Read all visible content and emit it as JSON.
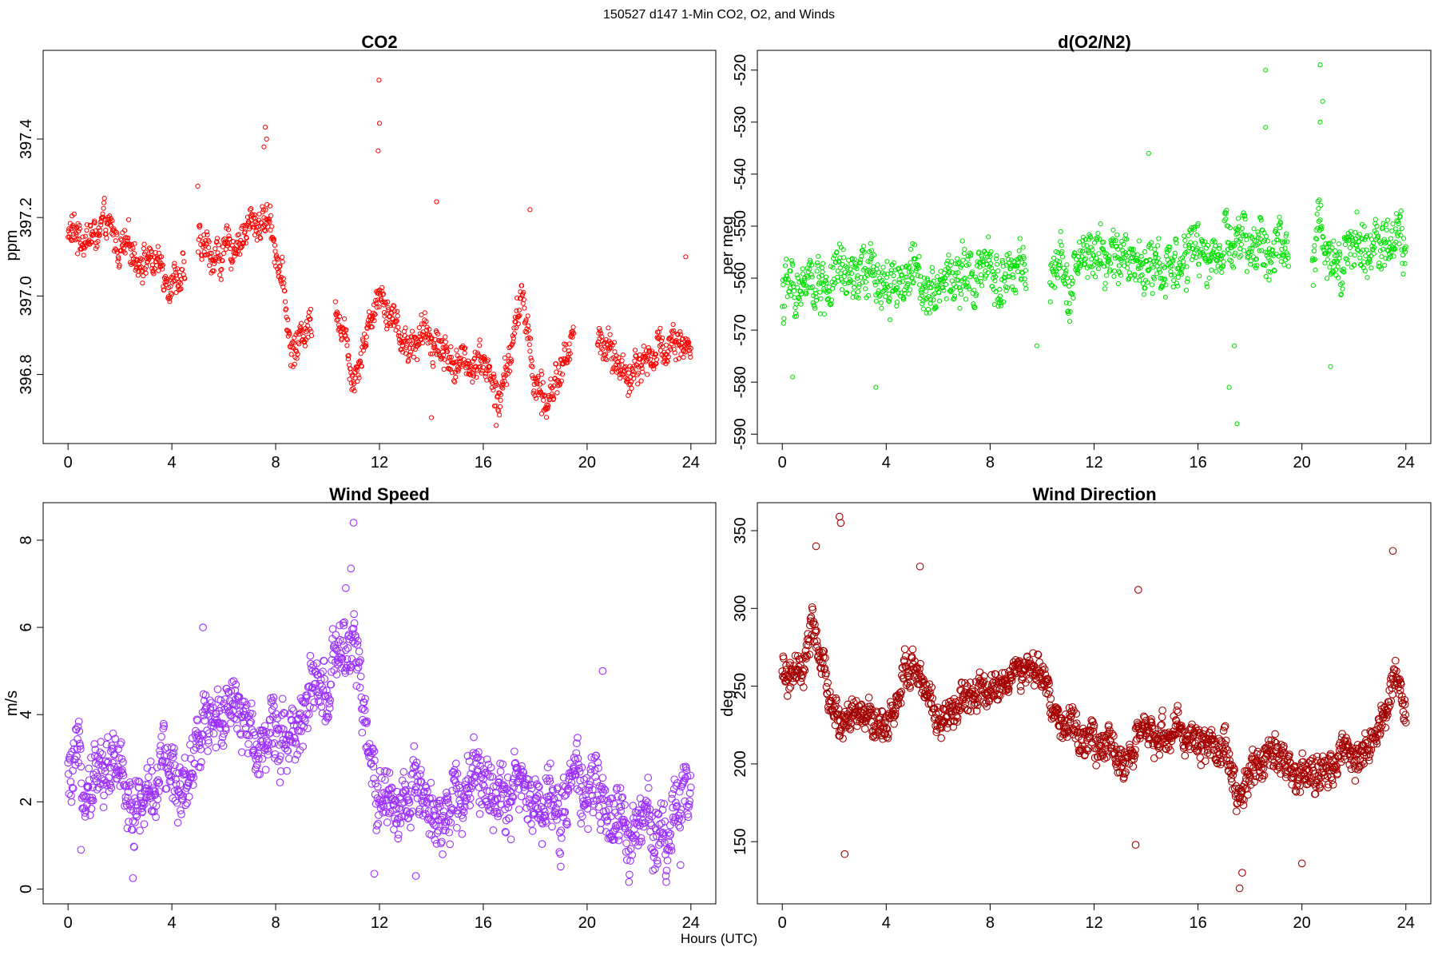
{
  "figure": {
    "suptitle": "150527   d147   1-Min CO2, O2, and Winds",
    "xlabel": "Hours (UTC)"
  },
  "chart_data": [
    {
      "type": "scatter",
      "title": "CO2",
      "xlabel": "",
      "ylabel": "ppm",
      "xlim": [
        -0.96,
        24.96
      ],
      "ylim": [
        396.624,
        397.626
      ],
      "xticks": [
        0,
        4,
        8,
        12,
        16,
        20,
        24
      ],
      "yticks": [
        396.8,
        397.0,
        397.2,
        397.4
      ],
      "ytick_labels": [
        "396.8",
        "397.0",
        "397.2",
        "397.4"
      ],
      "color": "#ff0000",
      "marker_size": "small",
      "gaps": [
        [
          4.5,
          5.0
        ],
        [
          9.4,
          10.3
        ],
        [
          19.5,
          20.4
        ]
      ],
      "trend": [
        [
          0,
          397.16
        ],
        [
          1,
          397.15
        ],
        [
          1.5,
          397.17
        ],
        [
          2,
          397.12
        ],
        [
          3,
          397.1
        ],
        [
          4,
          397.05
        ],
        [
          4.5,
          397.05
        ],
        [
          5,
          397.12
        ],
        [
          6,
          397.1
        ],
        [
          7,
          397.18
        ],
        [
          7.8,
          397.2
        ],
        [
          8.3,
          397.02
        ],
        [
          8.6,
          396.85
        ],
        [
          9.4,
          396.95
        ],
        [
          10.3,
          397.0
        ],
        [
          11,
          396.8
        ],
        [
          12,
          397.02
        ],
        [
          13,
          396.88
        ],
        [
          14,
          396.9
        ],
        [
          15,
          396.82
        ],
        [
          16,
          396.85
        ],
        [
          16.6,
          396.72
        ],
        [
          17.5,
          397.0
        ],
        [
          18,
          396.78
        ],
        [
          18.4,
          396.72
        ],
        [
          19.5,
          396.9
        ],
        [
          20.4,
          396.9
        ],
        [
          21.5,
          396.8
        ],
        [
          22.5,
          396.85
        ],
        [
          23.5,
          396.9
        ],
        [
          24,
          396.85
        ]
      ],
      "noise": 0.055,
      "extremes": [
        [
          11.98,
          397.55
        ],
        [
          12.0,
          397.44
        ],
        [
          11.95,
          397.37
        ],
        [
          7.6,
          397.43
        ],
        [
          7.65,
          397.4
        ],
        [
          7.55,
          397.38
        ],
        [
          14.2,
          397.24
        ],
        [
          5,
          397.28
        ],
        [
          17.8,
          397.22
        ],
        [
          16.5,
          396.67
        ],
        [
          14.0,
          396.69
        ],
        [
          18.25,
          396.7
        ],
        [
          23.8,
          397.1
        ]
      ]
    },
    {
      "type": "scatter",
      "title": "d(O2/N2)",
      "xlabel": "",
      "ylabel": "per meg",
      "xlim": [
        -0.96,
        24.96
      ],
      "ylim": [
        -591.8,
        -516.2
      ],
      "xticks": [
        0,
        4,
        8,
        12,
        16,
        20,
        24
      ],
      "yticks": [
        -590,
        -580,
        -570,
        -560,
        -550,
        -540,
        -530,
        -520
      ],
      "ytick_labels": [
        "-590",
        "-580",
        "-570",
        "-560",
        "-550",
        "-540",
        "-530",
        "-520"
      ],
      "color": "#00e000",
      "marker_size": "small",
      "gaps": [
        [
          9.4,
          10.3
        ],
        [
          19.5,
          20.4
        ]
      ],
      "trend": [
        [
          0,
          -563
        ],
        [
          2,
          -561
        ],
        [
          4,
          -560
        ],
        [
          6,
          -560
        ],
        [
          8,
          -560
        ],
        [
          9.4,
          -559
        ],
        [
          10.3,
          -562
        ],
        [
          12,
          -556
        ],
        [
          14,
          -557
        ],
        [
          16,
          -556
        ],
        [
          18,
          -554
        ],
        [
          19.5,
          -555
        ],
        [
          20.4,
          -553
        ],
        [
          22,
          -555
        ],
        [
          24,
          -552
        ]
      ],
      "noise": 6.5,
      "extremes": [
        [
          20.7,
          -519
        ],
        [
          18.6,
          -520
        ],
        [
          20.8,
          -526
        ],
        [
          18.6,
          -531
        ],
        [
          20.7,
          -530
        ],
        [
          17.5,
          -588
        ],
        [
          17.2,
          -581
        ],
        [
          14.1,
          -536
        ],
        [
          0.4,
          -579
        ],
        [
          3.6,
          -581
        ],
        [
          17.4,
          -573
        ],
        [
          21.1,
          -577
        ],
        [
          9.8,
          -573
        ]
      ]
    },
    {
      "type": "scatter",
      "title": "Wind Speed",
      "xlabel": "",
      "ylabel": "m/s",
      "xlim": [
        -0.96,
        24.96
      ],
      "ylim": [
        -0.34,
        8.86
      ],
      "xticks": [
        0,
        4,
        8,
        12,
        16,
        20,
        24
      ],
      "yticks": [
        0,
        2,
        4,
        6,
        8
      ],
      "ytick_labels": [
        "0",
        "2",
        "4",
        "6",
        "8"
      ],
      "color": "#9b30ff",
      "marker_size": "large",
      "gaps": [],
      "trend": [
        [
          0,
          2.4
        ],
        [
          1,
          2.8
        ],
        [
          2,
          2.7
        ],
        [
          2.7,
          1.8
        ],
        [
          3.5,
          2.6
        ],
        [
          4.5,
          2.6
        ],
        [
          5,
          3.4
        ],
        [
          5.5,
          4.2
        ],
        [
          7,
          3.6
        ],
        [
          8,
          3.5
        ],
        [
          9,
          4.0
        ],
        [
          10,
          4.6
        ],
        [
          11,
          5.6
        ],
        [
          11.6,
          3.0
        ],
        [
          12,
          2.2
        ],
        [
          13,
          2.0
        ],
        [
          14,
          1.8
        ],
        [
          15,
          2.0
        ],
        [
          16,
          2.6
        ],
        [
          17,
          2.4
        ],
        [
          18,
          2.0
        ],
        [
          19,
          1.9
        ],
        [
          20,
          2.4
        ],
        [
          21,
          1.5
        ],
        [
          22,
          1.3
        ],
        [
          23,
          1.4
        ],
        [
          24,
          2.6
        ]
      ],
      "noise": 0.95,
      "extremes": [
        [
          11.0,
          8.4
        ],
        [
          10.9,
          7.35
        ],
        [
          10.7,
          6.9
        ],
        [
          5.2,
          6.0
        ],
        [
          20.6,
          5.0
        ],
        [
          0.5,
          0.9
        ],
        [
          2.5,
          0.25
        ],
        [
          11.8,
          0.35
        ],
        [
          13.4,
          0.3
        ],
        [
          23.6,
          0.55
        ]
      ]
    },
    {
      "type": "scatter",
      "title": "Wind Direction",
      "xlabel": "",
      "ylabel": "deg",
      "xlim": [
        -0.96,
        24.96
      ],
      "ylim": [
        110,
        368
      ],
      "xticks": [
        0,
        4,
        8,
        12,
        16,
        20,
        24
      ],
      "yticks": [
        150,
        200,
        250,
        300,
        350
      ],
      "ytick_labels": [
        "150",
        "200",
        "250",
        "300",
        "350"
      ],
      "color": "#a50000",
      "marker_size": "large",
      "gaps": [],
      "trend": [
        [
          0,
          255
        ],
        [
          0.8,
          255
        ],
        [
          1.2,
          290
        ],
        [
          1.6,
          255
        ],
        [
          2.2,
          225
        ],
        [
          3,
          230
        ],
        [
          4,
          225
        ],
        [
          5,
          265
        ],
        [
          6,
          225
        ],
        [
          7,
          240
        ],
        [
          8,
          245
        ],
        [
          9,
          260
        ],
        [
          10,
          255
        ],
        [
          11,
          220
        ],
        [
          12,
          215
        ],
        [
          13,
          205
        ],
        [
          14,
          215
        ],
        [
          15,
          220
        ],
        [
          16,
          215
        ],
        [
          17,
          210
        ],
        [
          17.6,
          180
        ],
        [
          18.2,
          200
        ],
        [
          19,
          210
        ],
        [
          20,
          190
        ],
        [
          21,
          195
        ],
        [
          22,
          205
        ],
        [
          23,
          215
        ],
        [
          23.6,
          260
        ],
        [
          24,
          225
        ]
      ],
      "noise": 14,
      "extremes": [
        [
          2.2,
          359
        ],
        [
          2.25,
          355
        ],
        [
          1.3,
          340
        ],
        [
          5.3,
          327
        ],
        [
          23.5,
          337
        ],
        [
          13.7,
          312
        ],
        [
          2.4,
          142
        ],
        [
          17.6,
          120
        ],
        [
          17.7,
          130
        ],
        [
          20.0,
          136
        ],
        [
          13.6,
          148
        ]
      ]
    }
  ]
}
